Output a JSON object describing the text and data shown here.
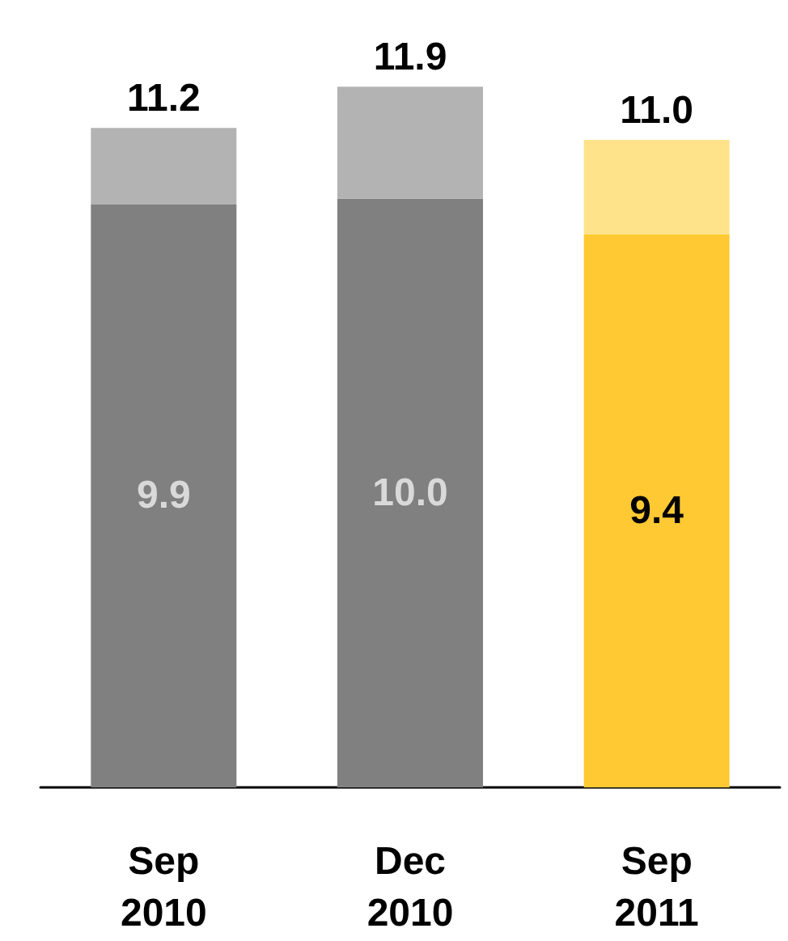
{
  "chart_data": {
    "type": "bar",
    "stacked": true,
    "categories": [
      "Sep 2010",
      "Dec 2010",
      "Sep 2011"
    ],
    "series": [
      {
        "colors": [
          "#808080",
          "#808080",
          "#ffc933"
        ],
        "values": [
          9.9,
          10.0,
          9.4
        ],
        "value_labels": [
          "9.9",
          "10.0",
          "9.4"
        ]
      },
      {
        "colors": [
          "#b3b3b3",
          "#b3b3b3",
          "#ffe38a"
        ],
        "values": [
          1.3,
          1.9,
          1.6
        ]
      }
    ],
    "totals": [
      "11.2",
      "11.9",
      "11.0"
    ],
    "tick_labels": "x"
  }
}
